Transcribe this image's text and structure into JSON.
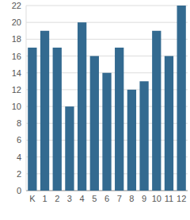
{
  "chart_data": {
    "type": "bar",
    "categories": [
      "K",
      "1",
      "2",
      "3",
      "4",
      "5",
      "6",
      "7",
      "8",
      "9",
      "10",
      "11",
      "12"
    ],
    "values": [
      17,
      19,
      17,
      10,
      20,
      16,
      14,
      17,
      12,
      13,
      19,
      16,
      22
    ],
    "color": "#336a90",
    "ylim": [
      0,
      22
    ],
    "yticks": [
      0,
      2,
      4,
      6,
      8,
      10,
      12,
      14,
      16,
      18,
      20,
      22
    ],
    "grid": true
  }
}
